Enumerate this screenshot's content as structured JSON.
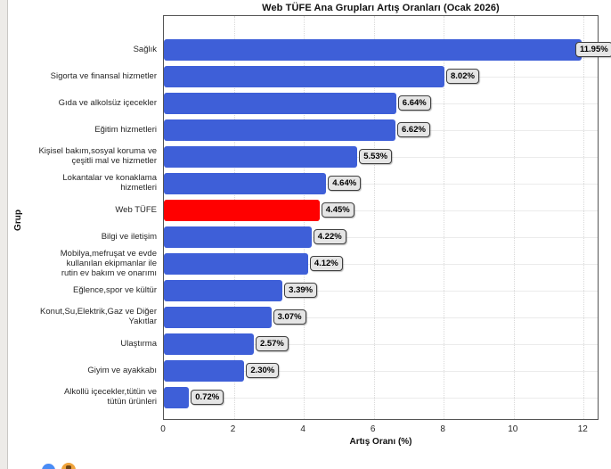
{
  "page": {
    "background_color": "#ffffff",
    "left_strip_color": "#edebe8"
  },
  "icons": {
    "bottom_left": [
      {
        "name": "blue-circle-icon",
        "color": "#4a8cf5"
      },
      {
        "name": "orange-circle-icon",
        "color": "#f0a43c"
      }
    ]
  },
  "chart_data": {
    "type": "bar",
    "orientation": "horizontal",
    "title": "Web TÜFE Ana Grupları Artış Oranları (Ocak 2026)",
    "xlabel": "Artış Oranı (%)",
    "ylabel": "Grup",
    "xlim": [
      0,
      12.45
    ],
    "xticks": [
      0,
      2,
      4,
      6,
      8,
      10,
      12
    ],
    "grid": true,
    "legend": "none",
    "bar_color": "#3e5fd8",
    "highlight_color": "#ff0000",
    "highlight_category": "Web TÜFE",
    "value_label_box_color": "#e5e5e5",
    "categories": [
      "Sağlık",
      "Sigorta ve finansal hizmetler",
      "Gıda ve alkolsüz içecekler",
      "Eğitim hizmetleri",
      "Kişisel bakım,sosyal koruma ve\nçeşitli mal ve hizmetler",
      "Lokantalar ve konaklama\nhizmetleri",
      "Web TÜFE",
      "Bilgi ve iletişim",
      "Mobilya,mefruşat ve evde\nkullanılan ekipmanlar ile\nrutin ev bakım ve onarımı",
      "Eğlence,spor ve kültür",
      "Konut,Su,Elektrik,Gaz ve Diğer\nYakıtlar",
      "Ulaştırma",
      "Giyim ve ayakkabı",
      "Alkollü içecekler,tütün ve\ntütün ürünleri"
    ],
    "values": [
      11.95,
      8.02,
      6.64,
      6.62,
      5.53,
      4.64,
      4.45,
      4.22,
      4.12,
      3.39,
      3.07,
      2.57,
      2.3,
      0.72
    ],
    "value_labels": [
      "11.95%",
      "8.02%",
      "6.64%",
      "6.62%",
      "5.53%",
      "4.64%",
      "4.45%",
      "4.22%",
      "4.12%",
      "3.39%",
      "3.07%",
      "2.57%",
      "2.30%",
      "0.72%"
    ]
  }
}
